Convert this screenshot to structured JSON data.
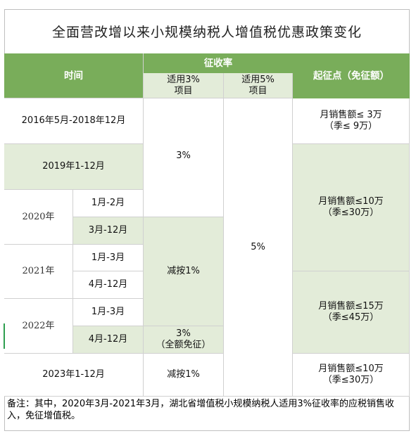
{
  "title": "全面营改增以来小规模纳税人增值税优惠政策变化",
  "header": {
    "time": "时间",
    "rate_group": "征收率",
    "rate3": "适用3%\n项目",
    "rate5": "适用5%\n项目",
    "threshold": "起征点（免征额）"
  },
  "rows": {
    "r2016_time": "2016年5月-2018年12月",
    "r2019_time": "2019年1-12月",
    "y2020": "2020年",
    "y2020_a": "1月-2月",
    "y2020_b": "3月-12月",
    "y2021": "2021年",
    "y2021_a": "1月-3月",
    "y2021_b": "4月-12月",
    "y2022": "2022年",
    "y2022_a": "1月-3月",
    "y2022_b": "4月-12月",
    "r2023_time": "2023年1-12月"
  },
  "rate3_cells": {
    "a": "3%",
    "b": "减按1%",
    "c": "3%\n（全额免征）",
    "d": "减按1%"
  },
  "rate5_cell": "5%",
  "threshold_cells": {
    "a": "月销售额≤ 3万\n（季≤ 9万）",
    "b": "月销售额≤10万\n（季≤30万）",
    "c": "月销售额≤15万\n（季≤45万）",
    "d": "月销售额≤10万\n（季≤30万）"
  },
  "note": "备注：其中，2020年3月-2021年3月，湖北省增值税小规模纳税人适用3%征收率的应税销售收入，免征增值税。"
}
